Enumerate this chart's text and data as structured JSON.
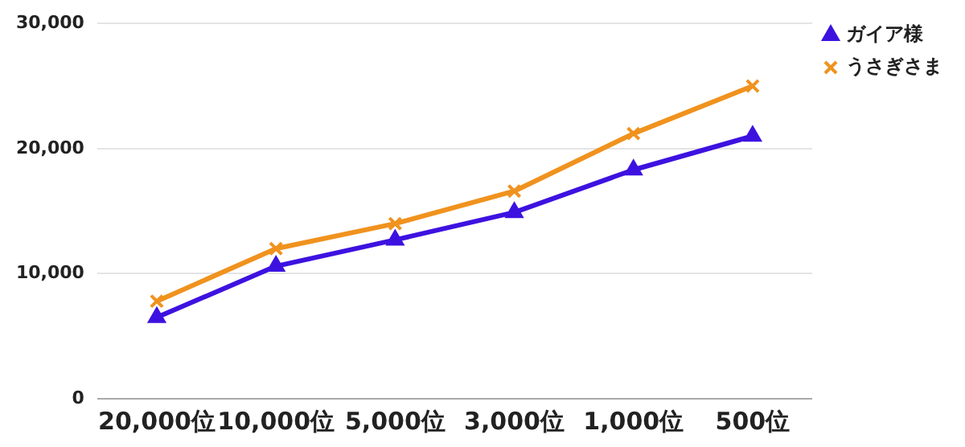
{
  "chart_data": {
    "type": "line",
    "categories": [
      "20,000位",
      "10,000位",
      "5,000位",
      "3,000位",
      "1,000位",
      "500位"
    ],
    "series": [
      {
        "name": "ガイア様",
        "color": "#3d12e0",
        "marker": "triangle",
        "values": [
          6500,
          10600,
          12700,
          14900,
          18300,
          21000
        ]
      },
      {
        "name": "うさぎさま",
        "color": "#f0921e",
        "marker": "cross",
        "values": [
          7800,
          12000,
          14000,
          16600,
          21200,
          25000
        ]
      }
    ],
    "ylim": [
      0,
      30000
    ],
    "yticks": [
      {
        "value": 0,
        "label": "0"
      },
      {
        "value": 10000,
        "label": "10,000"
      },
      {
        "value": 20000,
        "label": "20,000"
      },
      {
        "value": 30000,
        "label": "30,000"
      }
    ],
    "grid": "y",
    "legend": "top right"
  }
}
